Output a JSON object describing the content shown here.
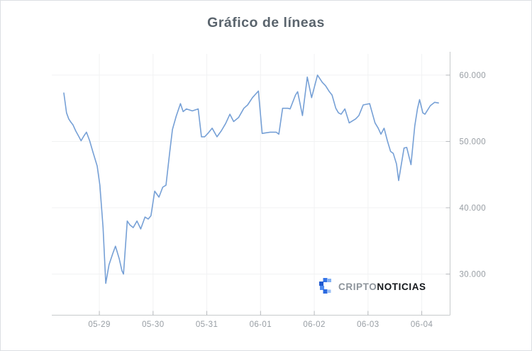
{
  "page": {
    "background": "#ffffff",
    "border_color": "#dcdfe3"
  },
  "title": "Gráfico de líneas",
  "watermark": {
    "icon": "criptonoticias-pixel-c-icon",
    "brand_prefix": "CRIPTO",
    "brand_suffix": "NOTICIAS",
    "brand_blue": "#2f6fe0"
  },
  "chart_data": {
    "type": "line",
    "title": "Gráfico de líneas",
    "xlabel": "",
    "ylabel": "",
    "legend": "none",
    "grid": true,
    "grid_color": "#f1f2f3",
    "axis_color": "#c7cacc",
    "tick_color": "#b7babd",
    "label_color": "#979da3",
    "line_color": "#76a0d6",
    "line_width": 1.6,
    "x_tick_labels": [
      "05-29",
      "05-30",
      "05-31",
      "06-01",
      "06-02",
      "06-03",
      "06-04"
    ],
    "x_tick_days": [
      0,
      1,
      2,
      3,
      4,
      5,
      6
    ],
    "y_ticks": [
      30000,
      40000,
      50000,
      60000
    ],
    "y_tick_labels": [
      "30.000",
      "40.000",
      "50.000",
      "60.000"
    ],
    "x_range_days": [
      -0.885,
      6.527
    ],
    "y_range": [
      23800,
      63200
    ],
    "series": [
      {
        "name": "precio",
        "points": [
          [
            -0.66,
            57300
          ],
          [
            -0.61,
            54300
          ],
          [
            -0.57,
            53400
          ],
          [
            -0.53,
            52900
          ],
          [
            -0.49,
            52500
          ],
          [
            -0.44,
            51600
          ],
          [
            -0.38,
            50700
          ],
          [
            -0.34,
            50100
          ],
          [
            -0.29,
            50800
          ],
          [
            -0.24,
            51400
          ],
          [
            -0.18,
            50100
          ],
          [
            -0.12,
            48400
          ],
          [
            -0.04,
            46300
          ],
          [
            0.01,
            43400
          ],
          [
            0.07,
            37000
          ],
          [
            0.12,
            28600
          ],
          [
            0.18,
            31400
          ],
          [
            0.25,
            33100
          ],
          [
            0.3,
            34200
          ],
          [
            0.37,
            32300
          ],
          [
            0.42,
            30500
          ],
          [
            0.45,
            30000
          ],
          [
            0.52,
            38000
          ],
          [
            0.57,
            37400
          ],
          [
            0.63,
            37000
          ],
          [
            0.7,
            38000
          ],
          [
            0.77,
            36800
          ],
          [
            0.85,
            38600
          ],
          [
            0.91,
            38300
          ],
          [
            0.96,
            38800
          ],
          [
            1.03,
            42500
          ],
          [
            1.11,
            41600
          ],
          [
            1.18,
            43100
          ],
          [
            1.24,
            43400
          ],
          [
            1.31,
            48400
          ],
          [
            1.36,
            51800
          ],
          [
            1.43,
            53800
          ],
          [
            1.51,
            55700
          ],
          [
            1.56,
            54500
          ],
          [
            1.62,
            54900
          ],
          [
            1.73,
            54600
          ],
          [
            1.84,
            54900
          ],
          [
            1.9,
            50700
          ],
          [
            1.96,
            50700
          ],
          [
            2.03,
            51300
          ],
          [
            2.1,
            52000
          ],
          [
            2.19,
            50700
          ],
          [
            2.27,
            51600
          ],
          [
            2.35,
            52700
          ],
          [
            2.43,
            54100
          ],
          [
            2.5,
            53000
          ],
          [
            2.59,
            53600
          ],
          [
            2.69,
            55000
          ],
          [
            2.76,
            55500
          ],
          [
            2.85,
            56600
          ],
          [
            2.96,
            57600
          ],
          [
            3.03,
            51200
          ],
          [
            3.1,
            51300
          ],
          [
            3.18,
            51400
          ],
          [
            3.29,
            51400
          ],
          [
            3.34,
            51100
          ],
          [
            3.41,
            55000
          ],
          [
            3.51,
            55000
          ],
          [
            3.55,
            54900
          ],
          [
            3.65,
            57000
          ],
          [
            3.69,
            57500
          ],
          [
            3.78,
            53900
          ],
          [
            3.87,
            59700
          ],
          [
            3.95,
            56600
          ],
          [
            4.06,
            60000
          ],
          [
            4.15,
            58900
          ],
          [
            4.21,
            58400
          ],
          [
            4.28,
            57500
          ],
          [
            4.33,
            57000
          ],
          [
            4.4,
            55000
          ],
          [
            4.45,
            54300
          ],
          [
            4.5,
            54100
          ],
          [
            4.57,
            54900
          ],
          [
            4.65,
            52800
          ],
          [
            4.77,
            53400
          ],
          [
            4.83,
            53900
          ],
          [
            4.91,
            55500
          ],
          [
            5.03,
            55700
          ],
          [
            5.13,
            52800
          ],
          [
            5.19,
            52000
          ],
          [
            5.24,
            51100
          ],
          [
            5.3,
            52000
          ],
          [
            5.36,
            50100
          ],
          [
            5.42,
            48500
          ],
          [
            5.47,
            48200
          ],
          [
            5.53,
            46600
          ],
          [
            5.57,
            44100
          ],
          [
            5.67,
            49000
          ],
          [
            5.72,
            49100
          ],
          [
            5.8,
            46500
          ],
          [
            5.87,
            52300
          ],
          [
            5.92,
            54900
          ],
          [
            5.96,
            56300
          ],
          [
            6.02,
            54300
          ],
          [
            6.06,
            54100
          ],
          [
            6.16,
            55400
          ],
          [
            6.24,
            55900
          ],
          [
            6.31,
            55800
          ]
        ]
      }
    ]
  }
}
